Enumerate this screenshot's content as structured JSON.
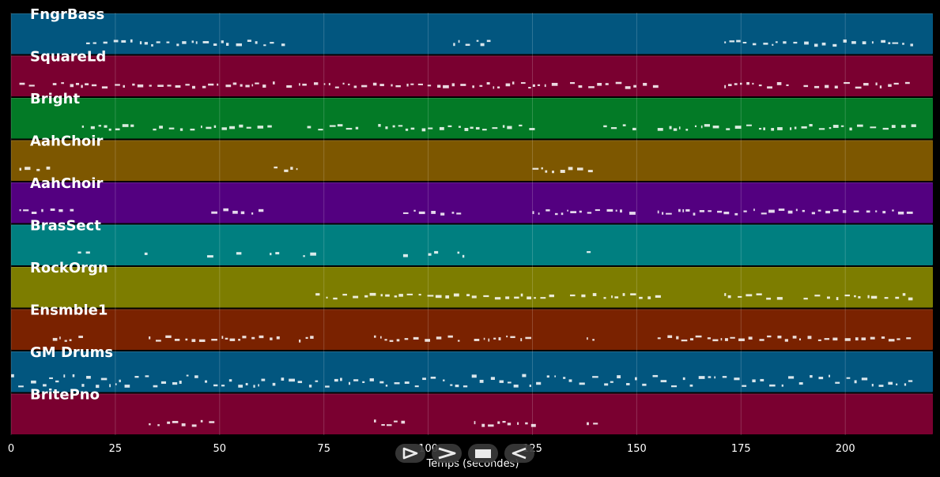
{
  "tracks": [
    {
      "name": "FngrBass",
      "color": "#02567f"
    },
    {
      "name": "SquareLd",
      "color": "#7a0030"
    },
    {
      "name": "Bright",
      "color": "#037a26"
    },
    {
      "name": "AahChoir",
      "color": "#7d5700"
    },
    {
      "name": "AahChoir",
      "color": "#530080"
    },
    {
      "name": "BrasSect",
      "color": "#007f80"
    },
    {
      "name": "RockOrgn",
      "color": "#7d7d00"
    },
    {
      "name": "Ensmble1",
      "color": "#7a2200"
    },
    {
      "name": "GM Drums",
      "color": "#02567f"
    },
    {
      "name": "BritePno",
      "color": "#7a0030"
    }
  ],
  "chart_data": {
    "type": "piano-roll",
    "xlabel": "Temps (secondes)",
    "xlim": [
      0,
      221
    ],
    "xticks": [
      0,
      25,
      50,
      75,
      100,
      125,
      150,
      175,
      200
    ],
    "grid": true
  },
  "controls": {
    "play_forward": "play-forward-icon",
    "fast_forward": "fast-forward-icon",
    "stop": "stop-icon",
    "rewind": "rewind-icon"
  }
}
